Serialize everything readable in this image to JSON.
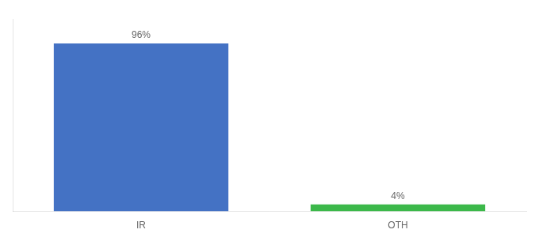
{
  "chart_data": {
    "type": "bar",
    "categories": [
      "IR",
      "OTH"
    ],
    "values": [
      96,
      4
    ],
    "value_labels": [
      "96%",
      "4%"
    ],
    "colors": [
      "#4472c4",
      "#3cb84a"
    ],
    "ylim": [
      0,
      110
    ],
    "data_labels": true,
    "tick_labels": "x",
    "grid": false
  }
}
